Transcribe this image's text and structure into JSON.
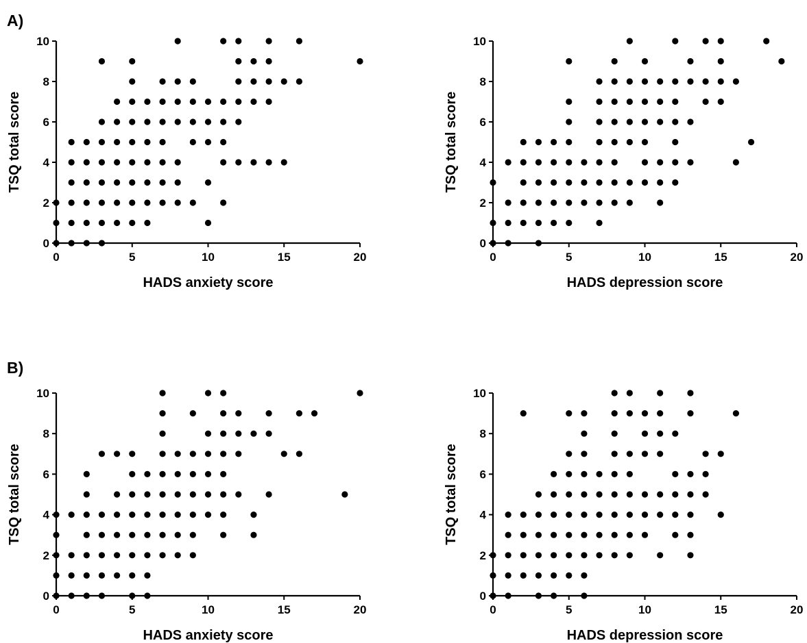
{
  "panel_labels": [
    "A)",
    "B)"
  ],
  "chart_data": [
    {
      "type": "scatter",
      "panel": "A)",
      "xlabel": "HADS anxiety score",
      "ylabel": "TSQ total score",
      "xlim": [
        0,
        20
      ],
      "ylim": [
        0,
        10
      ],
      "xticks": [
        0,
        5,
        10,
        15,
        20
      ],
      "yticks": [
        0,
        2,
        4,
        6,
        8,
        10
      ],
      "points": [
        [
          0,
          0
        ],
        [
          1,
          0
        ],
        [
          2,
          0
        ],
        [
          3,
          0
        ],
        [
          0,
          1
        ],
        [
          1,
          1
        ],
        [
          2,
          1
        ],
        [
          3,
          1
        ],
        [
          4,
          1
        ],
        [
          5,
          1
        ],
        [
          6,
          1
        ],
        [
          10,
          1
        ],
        [
          0,
          2
        ],
        [
          1,
          2
        ],
        [
          2,
          2
        ],
        [
          3,
          2
        ],
        [
          4,
          2
        ],
        [
          5,
          2
        ],
        [
          6,
          2
        ],
        [
          7,
          2
        ],
        [
          8,
          2
        ],
        [
          9,
          2
        ],
        [
          11,
          2
        ],
        [
          1,
          3
        ],
        [
          2,
          3
        ],
        [
          3,
          3
        ],
        [
          4,
          3
        ],
        [
          5,
          3
        ],
        [
          6,
          3
        ],
        [
          7,
          3
        ],
        [
          8,
          3
        ],
        [
          10,
          3
        ],
        [
          1,
          4
        ],
        [
          2,
          4
        ],
        [
          3,
          4
        ],
        [
          4,
          4
        ],
        [
          5,
          4
        ],
        [
          6,
          4
        ],
        [
          7,
          4
        ],
        [
          8,
          4
        ],
        [
          11,
          4
        ],
        [
          12,
          4
        ],
        [
          13,
          4
        ],
        [
          14,
          4
        ],
        [
          15,
          4
        ],
        [
          1,
          5
        ],
        [
          2,
          5
        ],
        [
          3,
          5
        ],
        [
          4,
          5
        ],
        [
          5,
          5
        ],
        [
          6,
          5
        ],
        [
          7,
          5
        ],
        [
          9,
          5
        ],
        [
          10,
          5
        ],
        [
          11,
          5
        ],
        [
          3,
          6
        ],
        [
          4,
          6
        ],
        [
          5,
          6
        ],
        [
          6,
          6
        ],
        [
          7,
          6
        ],
        [
          8,
          6
        ],
        [
          9,
          6
        ],
        [
          10,
          6
        ],
        [
          11,
          6
        ],
        [
          12,
          6
        ],
        [
          4,
          7
        ],
        [
          5,
          7
        ],
        [
          6,
          7
        ],
        [
          7,
          7
        ],
        [
          8,
          7
        ],
        [
          9,
          7
        ],
        [
          10,
          7
        ],
        [
          11,
          7
        ],
        [
          12,
          7
        ],
        [
          13,
          7
        ],
        [
          14,
          7
        ],
        [
          5,
          8
        ],
        [
          7,
          8
        ],
        [
          8,
          8
        ],
        [
          9,
          8
        ],
        [
          12,
          8
        ],
        [
          13,
          8
        ],
        [
          14,
          8
        ],
        [
          15,
          8
        ],
        [
          16,
          8
        ],
        [
          3,
          9
        ],
        [
          5,
          9
        ],
        [
          12,
          9
        ],
        [
          13,
          9
        ],
        [
          14,
          9
        ],
        [
          20,
          9
        ],
        [
          8,
          10
        ],
        [
          11,
          10
        ],
        [
          12,
          10
        ],
        [
          14,
          10
        ],
        [
          16,
          10
        ]
      ]
    },
    {
      "type": "scatter",
      "panel": "A)",
      "xlabel": "HADS depression score",
      "ylabel": "TSQ total score",
      "xlim": [
        0,
        20
      ],
      "ylim": [
        0,
        10
      ],
      "xticks": [
        0,
        5,
        10,
        15,
        20
      ],
      "yticks": [
        0,
        2,
        4,
        6,
        8,
        10
      ],
      "points": [
        [
          0,
          0
        ],
        [
          1,
          0
        ],
        [
          3,
          0
        ],
        [
          0,
          1
        ],
        [
          1,
          1
        ],
        [
          2,
          1
        ],
        [
          3,
          1
        ],
        [
          4,
          1
        ],
        [
          5,
          1
        ],
        [
          7,
          1
        ],
        [
          1,
          2
        ],
        [
          2,
          2
        ],
        [
          3,
          2
        ],
        [
          4,
          2
        ],
        [
          5,
          2
        ],
        [
          6,
          2
        ],
        [
          7,
          2
        ],
        [
          8,
          2
        ],
        [
          9,
          2
        ],
        [
          11,
          2
        ],
        [
          0,
          3
        ],
        [
          2,
          3
        ],
        [
          3,
          3
        ],
        [
          4,
          3
        ],
        [
          5,
          3
        ],
        [
          6,
          3
        ],
        [
          7,
          3
        ],
        [
          8,
          3
        ],
        [
          9,
          3
        ],
        [
          10,
          3
        ],
        [
          11,
          3
        ],
        [
          12,
          3
        ],
        [
          1,
          4
        ],
        [
          2,
          4
        ],
        [
          3,
          4
        ],
        [
          4,
          4
        ],
        [
          5,
          4
        ],
        [
          6,
          4
        ],
        [
          7,
          4
        ],
        [
          8,
          4
        ],
        [
          10,
          4
        ],
        [
          11,
          4
        ],
        [
          12,
          4
        ],
        [
          13,
          4
        ],
        [
          16,
          4
        ],
        [
          2,
          5
        ],
        [
          3,
          5
        ],
        [
          4,
          5
        ],
        [
          5,
          5
        ],
        [
          7,
          5
        ],
        [
          8,
          5
        ],
        [
          9,
          5
        ],
        [
          10,
          5
        ],
        [
          12,
          5
        ],
        [
          17,
          5
        ],
        [
          5,
          6
        ],
        [
          7,
          6
        ],
        [
          8,
          6
        ],
        [
          9,
          6
        ],
        [
          10,
          6
        ],
        [
          11,
          6
        ],
        [
          12,
          6
        ],
        [
          13,
          6
        ],
        [
          5,
          7
        ],
        [
          7,
          7
        ],
        [
          8,
          7
        ],
        [
          9,
          7
        ],
        [
          10,
          7
        ],
        [
          11,
          7
        ],
        [
          12,
          7
        ],
        [
          14,
          7
        ],
        [
          15,
          7
        ],
        [
          7,
          8
        ],
        [
          8,
          8
        ],
        [
          9,
          8
        ],
        [
          10,
          8
        ],
        [
          11,
          8
        ],
        [
          12,
          8
        ],
        [
          13,
          8
        ],
        [
          14,
          8
        ],
        [
          15,
          8
        ],
        [
          16,
          8
        ],
        [
          5,
          9
        ],
        [
          8,
          9
        ],
        [
          10,
          9
        ],
        [
          13,
          9
        ],
        [
          15,
          9
        ],
        [
          19,
          9
        ],
        [
          9,
          10
        ],
        [
          12,
          10
        ],
        [
          14,
          10
        ],
        [
          15,
          10
        ],
        [
          18,
          10
        ]
      ]
    },
    {
      "type": "scatter",
      "panel": "B)",
      "xlabel": "HADS anxiety score",
      "ylabel": "TSQ total score",
      "xlim": [
        0,
        20
      ],
      "ylim": [
        0,
        10
      ],
      "xticks": [
        0,
        5,
        10,
        15,
        20
      ],
      "yticks": [
        0,
        2,
        4,
        6,
        8,
        10
      ],
      "points": [
        [
          0,
          0
        ],
        [
          1,
          0
        ],
        [
          2,
          0
        ],
        [
          3,
          0
        ],
        [
          5,
          0
        ],
        [
          6,
          0
        ],
        [
          0,
          1
        ],
        [
          1,
          1
        ],
        [
          2,
          1
        ],
        [
          3,
          1
        ],
        [
          4,
          1
        ],
        [
          5,
          1
        ],
        [
          6,
          1
        ],
        [
          0,
          2
        ],
        [
          1,
          2
        ],
        [
          2,
          2
        ],
        [
          3,
          2
        ],
        [
          4,
          2
        ],
        [
          5,
          2
        ],
        [
          6,
          2
        ],
        [
          7,
          2
        ],
        [
          8,
          2
        ],
        [
          9,
          2
        ],
        [
          0,
          3
        ],
        [
          2,
          3
        ],
        [
          3,
          3
        ],
        [
          4,
          3
        ],
        [
          5,
          3
        ],
        [
          6,
          3
        ],
        [
          7,
          3
        ],
        [
          8,
          3
        ],
        [
          9,
          3
        ],
        [
          11,
          3
        ],
        [
          13,
          3
        ],
        [
          0,
          4
        ],
        [
          1,
          4
        ],
        [
          2,
          4
        ],
        [
          3,
          4
        ],
        [
          4,
          4
        ],
        [
          5,
          4
        ],
        [
          6,
          4
        ],
        [
          7,
          4
        ],
        [
          8,
          4
        ],
        [
          9,
          4
        ],
        [
          10,
          4
        ],
        [
          11,
          4
        ],
        [
          13,
          4
        ],
        [
          2,
          5
        ],
        [
          4,
          5
        ],
        [
          5,
          5
        ],
        [
          6,
          5
        ],
        [
          7,
          5
        ],
        [
          8,
          5
        ],
        [
          9,
          5
        ],
        [
          10,
          5
        ],
        [
          11,
          5
        ],
        [
          12,
          5
        ],
        [
          14,
          5
        ],
        [
          19,
          5
        ],
        [
          2,
          6
        ],
        [
          5,
          6
        ],
        [
          6,
          6
        ],
        [
          7,
          6
        ],
        [
          8,
          6
        ],
        [
          9,
          6
        ],
        [
          10,
          6
        ],
        [
          11,
          6
        ],
        [
          3,
          7
        ],
        [
          4,
          7
        ],
        [
          5,
          7
        ],
        [
          7,
          7
        ],
        [
          8,
          7
        ],
        [
          9,
          7
        ],
        [
          10,
          7
        ],
        [
          11,
          7
        ],
        [
          12,
          7
        ],
        [
          15,
          7
        ],
        [
          16,
          7
        ],
        [
          7,
          8
        ],
        [
          10,
          8
        ],
        [
          11,
          8
        ],
        [
          12,
          8
        ],
        [
          13,
          8
        ],
        [
          14,
          8
        ],
        [
          7,
          9
        ],
        [
          9,
          9
        ],
        [
          11,
          9
        ],
        [
          12,
          9
        ],
        [
          14,
          9
        ],
        [
          16,
          9
        ],
        [
          17,
          9
        ],
        [
          7,
          10
        ],
        [
          10,
          10
        ],
        [
          11,
          10
        ],
        [
          20,
          10
        ]
      ]
    },
    {
      "type": "scatter",
      "panel": "B)",
      "xlabel": "HADS depression score",
      "ylabel": "TSQ total score",
      "xlim": [
        0,
        20
      ],
      "ylim": [
        0,
        10
      ],
      "xticks": [
        0,
        5,
        10,
        15,
        20
      ],
      "yticks": [
        0,
        2,
        4,
        6,
        8,
        10
      ],
      "points": [
        [
          0,
          0
        ],
        [
          1,
          0
        ],
        [
          3,
          0
        ],
        [
          4,
          0
        ],
        [
          6,
          0
        ],
        [
          0,
          1
        ],
        [
          1,
          1
        ],
        [
          2,
          1
        ],
        [
          3,
          1
        ],
        [
          4,
          1
        ],
        [
          5,
          1
        ],
        [
          6,
          1
        ],
        [
          0,
          2
        ],
        [
          1,
          2
        ],
        [
          2,
          2
        ],
        [
          3,
          2
        ],
        [
          4,
          2
        ],
        [
          5,
          2
        ],
        [
          6,
          2
        ],
        [
          7,
          2
        ],
        [
          8,
          2
        ],
        [
          9,
          2
        ],
        [
          11,
          2
        ],
        [
          13,
          2
        ],
        [
          1,
          3
        ],
        [
          2,
          3
        ],
        [
          3,
          3
        ],
        [
          4,
          3
        ],
        [
          5,
          3
        ],
        [
          6,
          3
        ],
        [
          7,
          3
        ],
        [
          8,
          3
        ],
        [
          9,
          3
        ],
        [
          10,
          3
        ],
        [
          12,
          3
        ],
        [
          13,
          3
        ],
        [
          1,
          4
        ],
        [
          2,
          4
        ],
        [
          3,
          4
        ],
        [
          4,
          4
        ],
        [
          5,
          4
        ],
        [
          6,
          4
        ],
        [
          7,
          4
        ],
        [
          8,
          4
        ],
        [
          9,
          4
        ],
        [
          10,
          4
        ],
        [
          11,
          4
        ],
        [
          12,
          4
        ],
        [
          13,
          4
        ],
        [
          15,
          4
        ],
        [
          3,
          5
        ],
        [
          4,
          5
        ],
        [
          5,
          5
        ],
        [
          6,
          5
        ],
        [
          7,
          5
        ],
        [
          8,
          5
        ],
        [
          9,
          5
        ],
        [
          10,
          5
        ],
        [
          11,
          5
        ],
        [
          12,
          5
        ],
        [
          13,
          5
        ],
        [
          14,
          5
        ],
        [
          4,
          6
        ],
        [
          5,
          6
        ],
        [
          6,
          6
        ],
        [
          7,
          6
        ],
        [
          8,
          6
        ],
        [
          9,
          6
        ],
        [
          12,
          6
        ],
        [
          13,
          6
        ],
        [
          14,
          6
        ],
        [
          5,
          7
        ],
        [
          6,
          7
        ],
        [
          8,
          7
        ],
        [
          9,
          7
        ],
        [
          10,
          7
        ],
        [
          11,
          7
        ],
        [
          14,
          7
        ],
        [
          15,
          7
        ],
        [
          6,
          8
        ],
        [
          8,
          8
        ],
        [
          10,
          8
        ],
        [
          11,
          8
        ],
        [
          12,
          8
        ],
        [
          2,
          9
        ],
        [
          5,
          9
        ],
        [
          6,
          9
        ],
        [
          8,
          9
        ],
        [
          9,
          9
        ],
        [
          10,
          9
        ],
        [
          11,
          9
        ],
        [
          13,
          9
        ],
        [
          16,
          9
        ],
        [
          8,
          10
        ],
        [
          9,
          10
        ],
        [
          11,
          10
        ],
        [
          13,
          10
        ]
      ]
    }
  ]
}
